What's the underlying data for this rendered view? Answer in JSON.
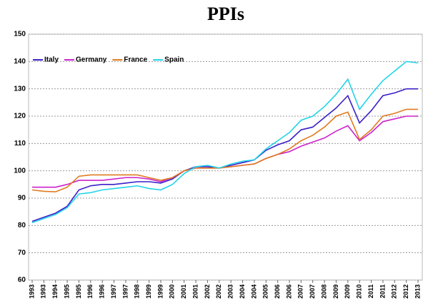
{
  "chart_data": {
    "type": "line",
    "title": "PPIs",
    "categories": [
      "1993",
      "1993",
      "1994",
      "1995",
      "1995",
      "1996",
      "1996",
      "1997",
      "1997",
      "1998",
      "1999",
      "1999",
      "2000",
      "2001",
      "2001",
      "2002",
      "2002",
      "2003",
      "2004",
      "2004",
      "2005",
      "2006",
      "2006",
      "2007",
      "2007",
      "2008",
      "2009",
      "2009",
      "2010",
      "2011",
      "2011",
      "2012",
      "2012",
      "2013"
    ],
    "series": [
      {
        "name": "Italy",
        "color": "#3a1fc8",
        "values": [
          81.5,
          83,
          84.5,
          87,
          93,
          94.5,
          95,
          95,
          95.5,
          96,
          96,
          95.5,
          97,
          100,
          101.5,
          101.5,
          101,
          102,
          103,
          104,
          107.5,
          109.5,
          111,
          115,
          116,
          119.5,
          123,
          127.5,
          117.5,
          122,
          127.5,
          128.5,
          130,
          130
        ]
      },
      {
        "name": "Germany",
        "color": "#cc22cc",
        "values": [
          94,
          94,
          94,
          95,
          96.5,
          96.5,
          96.5,
          97,
          97.5,
          97.5,
          97,
          96,
          97.5,
          100,
          101,
          101,
          101,
          101.5,
          102,
          102.5,
          104.5,
          106,
          107,
          109,
          110.5,
          112,
          114.5,
          116.5,
          111,
          114,
          118,
          119,
          120,
          120
        ]
      },
      {
        "name": "France",
        "color": "#e07b20",
        "values": [
          93,
          92.5,
          92.3,
          94,
          98,
          98.5,
          98.5,
          98.5,
          98.5,
          98.5,
          97.5,
          96.5,
          97.5,
          100,
          101,
          101,
          101,
          101.5,
          102,
          102.5,
          104.5,
          106,
          108,
          111,
          113,
          116,
          120,
          121.5,
          111.5,
          115,
          120,
          121,
          122.5,
          122.5
        ]
      },
      {
        "name": "Spain",
        "color": "#22d4e8",
        "values": [
          81,
          82.5,
          84,
          86.5,
          91.5,
          92,
          93,
          93.5,
          94,
          94.5,
          93.5,
          93,
          95,
          99,
          101.5,
          102,
          101,
          102.5,
          103.5,
          104,
          108,
          111,
          114,
          118.5,
          120,
          123.5,
          128,
          133.5,
          122.5,
          128,
          133,
          136.5,
          140,
          139.5
        ]
      }
    ],
    "ylim": [
      60,
      150
    ],
    "yticks": [
      60,
      70,
      80,
      90,
      100,
      110,
      120,
      130,
      140,
      150
    ],
    "grid": true,
    "legend": "upper left"
  }
}
